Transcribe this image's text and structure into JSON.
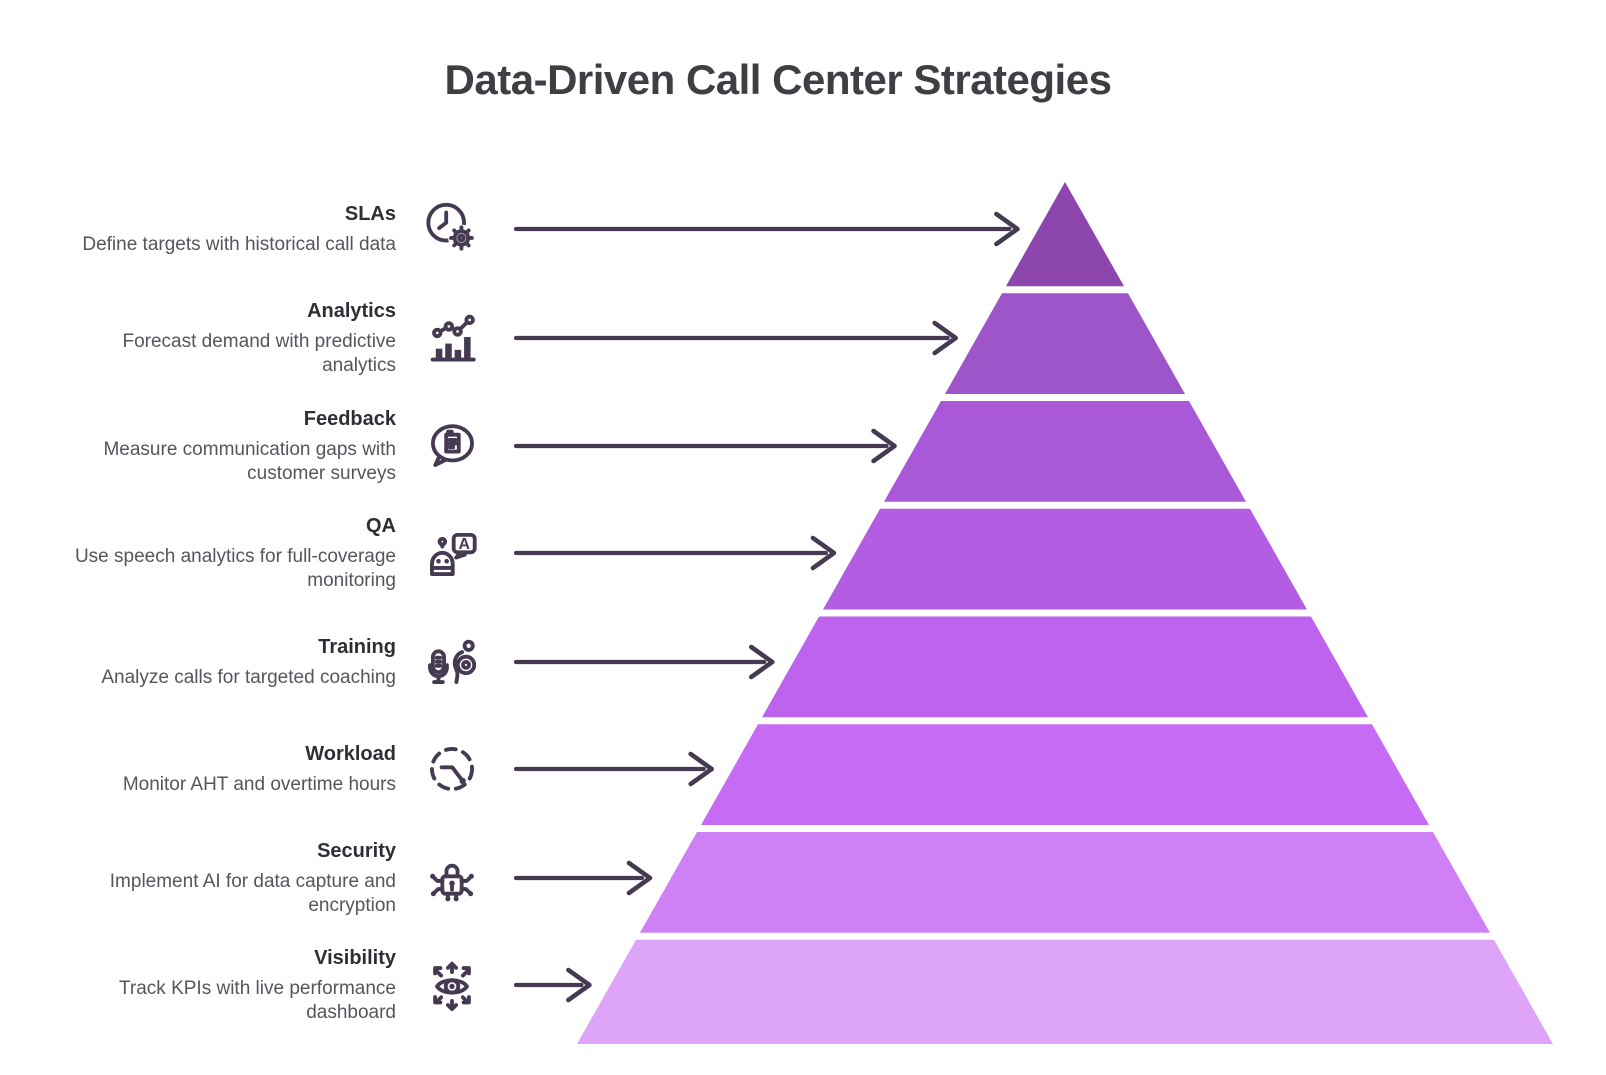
{
  "title": "Data-Driven Call Center Strategies",
  "pyramid": {
    "arrow_color": "#463a52",
    "icon_color": "#463a52",
    "separator_color": "#ffffff",
    "levels": [
      {
        "title": "SLAs",
        "description": "Define targets with historical call data",
        "icon": "clock-gear-icon",
        "color": "#8c46ae"
      },
      {
        "title": "Analytics",
        "description": "Forecast demand with predictive\nanalytics",
        "icon": "bar-line-chart-icon",
        "color": "#9d55c9"
      },
      {
        "title": "Feedback",
        "description": "Measure communication gaps with\ncustomer surveys",
        "icon": "survey-bubble-icon",
        "color": "#a959d7"
      },
      {
        "title": "QA",
        "description": "Use speech analytics for full-coverage\nmonitoring",
        "icon": "robot-chat-icon",
        "color": "#b35ee2"
      },
      {
        "title": "Training",
        "description": "Analyze calls for targeted coaching",
        "icon": "mic-coaching-icon",
        "color": "#bd63ed"
      },
      {
        "title": "Workload",
        "description": "Monitor AHT and overtime hours",
        "icon": "time-tracking-icon",
        "color": "#c66bf3"
      },
      {
        "title": "Security",
        "description": "Implement AI for data capture and\nencryption",
        "icon": "encryption-lock-icon",
        "color": "#cf80f4"
      },
      {
        "title": "Visibility",
        "description": "Track KPIs with live performance\ndashboard",
        "icon": "eye-tracking-icon",
        "color": "#dda4f8"
      }
    ]
  }
}
